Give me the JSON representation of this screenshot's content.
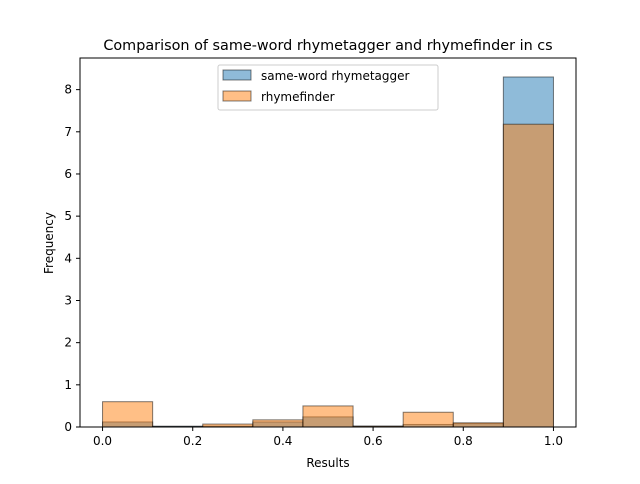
{
  "chart_data": {
    "type": "bar",
    "title": "Comparison of same-word rhymetagger and rhymefinder in cs",
    "xlabel": "Results",
    "ylabel": "Frequency",
    "xlim": [
      -0.05,
      1.05
    ],
    "ylim": [
      0,
      8.75
    ],
    "xticks": [
      0.0,
      0.2,
      0.4,
      0.6,
      0.8,
      1.0
    ],
    "xtick_labels": [
      "0.0",
      "0.2",
      "0.4",
      "0.6",
      "0.8",
      "1.0"
    ],
    "yticks": [
      0,
      1,
      2,
      3,
      4,
      5,
      6,
      7,
      8
    ],
    "ytick_labels": [
      "0",
      "1",
      "2",
      "3",
      "4",
      "5",
      "6",
      "7",
      "8"
    ],
    "bin_edges": [
      0.0,
      0.1111,
      0.2222,
      0.3333,
      0.4444,
      0.5556,
      0.6667,
      0.7778,
      0.8889,
      1.0
    ],
    "legend_position": "upper center",
    "grid": false,
    "series": [
      {
        "name": "same-word rhymetagger",
        "color": "#1f77b4",
        "alpha": 0.5,
        "values": [
          0.12,
          0.02,
          0.02,
          0.12,
          0.24,
          0.02,
          0.06,
          0.08,
          8.3
        ]
      },
      {
        "name": "rhymefinder",
        "color": "#ff7f0e",
        "alpha": 0.5,
        "values": [
          0.6,
          0.01,
          0.07,
          0.17,
          0.5,
          0.02,
          0.35,
          0.1,
          7.18
        ]
      }
    ]
  }
}
